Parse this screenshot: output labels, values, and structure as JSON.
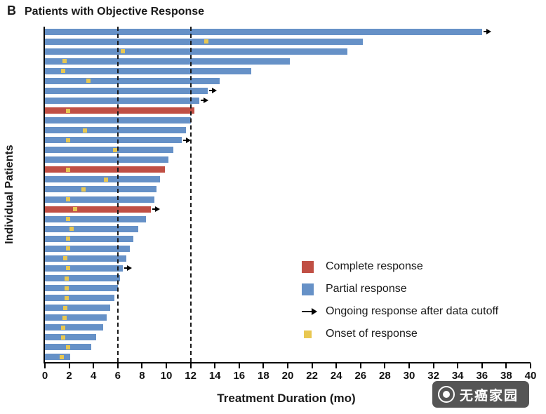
{
  "header": {
    "panel": "B",
    "title": "Patients with Objective Response"
  },
  "axes": {
    "x_label": "Treatment Duration (mo)",
    "y_label": "Individual Patients"
  },
  "legend": {
    "items": [
      {
        "key": "complete",
        "label": "Complete response",
        "color": "#c04f44"
      },
      {
        "key": "partial",
        "label": "Partial response",
        "color": "#6691c7"
      },
      {
        "key": "ongoing",
        "label": "Ongoing response after data cutoff",
        "color": "#000000"
      },
      {
        "key": "onset",
        "label": "Onset of response",
        "color": "#e8c751"
      }
    ]
  },
  "watermark": {
    "text": "无癌家园"
  },
  "chart_data": {
    "type": "bar",
    "orientation": "horizontal",
    "title": "Patients with Objective Response",
    "xlabel": "Treatment Duration (mo)",
    "ylabel": "Individual Patients",
    "xlim": [
      0,
      40
    ],
    "x_ticks": [
      0,
      2,
      4,
      6,
      8,
      10,
      12,
      14,
      16,
      18,
      20,
      22,
      24,
      26,
      28,
      30,
      32,
      34,
      36,
      38,
      40
    ],
    "reference_lines_x": [
      6,
      12
    ],
    "grid": false,
    "legend_position": "inside-right",
    "colors": {
      "complete": "#c04f44",
      "partial": "#6691c7",
      "onset": "#e8c751",
      "arrow": "#000000"
    },
    "bars": [
      {
        "duration": 36.0,
        "response": "partial",
        "onset": null,
        "ongoing": true
      },
      {
        "duration": 26.2,
        "response": "partial",
        "onset": 13.3,
        "ongoing": false
      },
      {
        "duration": 24.9,
        "response": "partial",
        "onset": 6.4,
        "ongoing": false
      },
      {
        "duration": 20.2,
        "response": "partial",
        "onset": 1.6,
        "ongoing": false
      },
      {
        "duration": 17.0,
        "response": "partial",
        "onset": 1.5,
        "ongoing": false
      },
      {
        "duration": 14.4,
        "response": "partial",
        "onset": 3.6,
        "ongoing": false
      },
      {
        "duration": 13.4,
        "response": "partial",
        "onset": null,
        "ongoing": true
      },
      {
        "duration": 12.7,
        "response": "partial",
        "onset": null,
        "ongoing": true
      },
      {
        "duration": 12.3,
        "response": "complete",
        "onset": 1.9,
        "ongoing": false
      },
      {
        "duration": 12.0,
        "response": "partial",
        "onset": null,
        "ongoing": false
      },
      {
        "duration": 11.6,
        "response": "partial",
        "onset": 3.3,
        "ongoing": false
      },
      {
        "duration": 11.3,
        "response": "partial",
        "onset": 1.9,
        "ongoing": true
      },
      {
        "duration": 10.6,
        "response": "partial",
        "onset": 5.8,
        "ongoing": false
      },
      {
        "duration": 10.2,
        "response": "partial",
        "onset": null,
        "ongoing": false
      },
      {
        "duration": 9.9,
        "response": "complete",
        "onset": 1.9,
        "ongoing": false
      },
      {
        "duration": 9.5,
        "response": "partial",
        "onset": 5.0,
        "ongoing": false
      },
      {
        "duration": 9.2,
        "response": "partial",
        "onset": 3.2,
        "ongoing": false
      },
      {
        "duration": 9.0,
        "response": "partial",
        "onset": 1.9,
        "ongoing": false
      },
      {
        "duration": 8.7,
        "response": "complete",
        "onset": 2.5,
        "ongoing": true
      },
      {
        "duration": 8.3,
        "response": "partial",
        "onset": 1.9,
        "ongoing": false
      },
      {
        "duration": 7.7,
        "response": "partial",
        "onset": 2.2,
        "ongoing": false
      },
      {
        "duration": 7.3,
        "response": "partial",
        "onset": 1.9,
        "ongoing": false
      },
      {
        "duration": 7.0,
        "response": "partial",
        "onset": 1.9,
        "ongoing": false
      },
      {
        "duration": 6.7,
        "response": "partial",
        "onset": 1.7,
        "ongoing": false
      },
      {
        "duration": 6.4,
        "response": "partial",
        "onset": 1.9,
        "ongoing": true
      },
      {
        "duration": 6.2,
        "response": "partial",
        "onset": 1.8,
        "ongoing": false
      },
      {
        "duration": 6.0,
        "response": "partial",
        "onset": 1.8,
        "ongoing": false
      },
      {
        "duration": 5.7,
        "response": "partial",
        "onset": 1.8,
        "ongoing": false
      },
      {
        "duration": 5.4,
        "response": "partial",
        "onset": 1.7,
        "ongoing": false
      },
      {
        "duration": 5.1,
        "response": "partial",
        "onset": 1.6,
        "ongoing": false
      },
      {
        "duration": 4.8,
        "response": "partial",
        "onset": 1.5,
        "ongoing": false
      },
      {
        "duration": 4.2,
        "response": "partial",
        "onset": 1.5,
        "ongoing": false
      },
      {
        "duration": 3.8,
        "response": "partial",
        "onset": 1.9,
        "ongoing": false
      },
      {
        "duration": 2.1,
        "response": "partial",
        "onset": 1.4,
        "ongoing": false
      }
    ]
  }
}
